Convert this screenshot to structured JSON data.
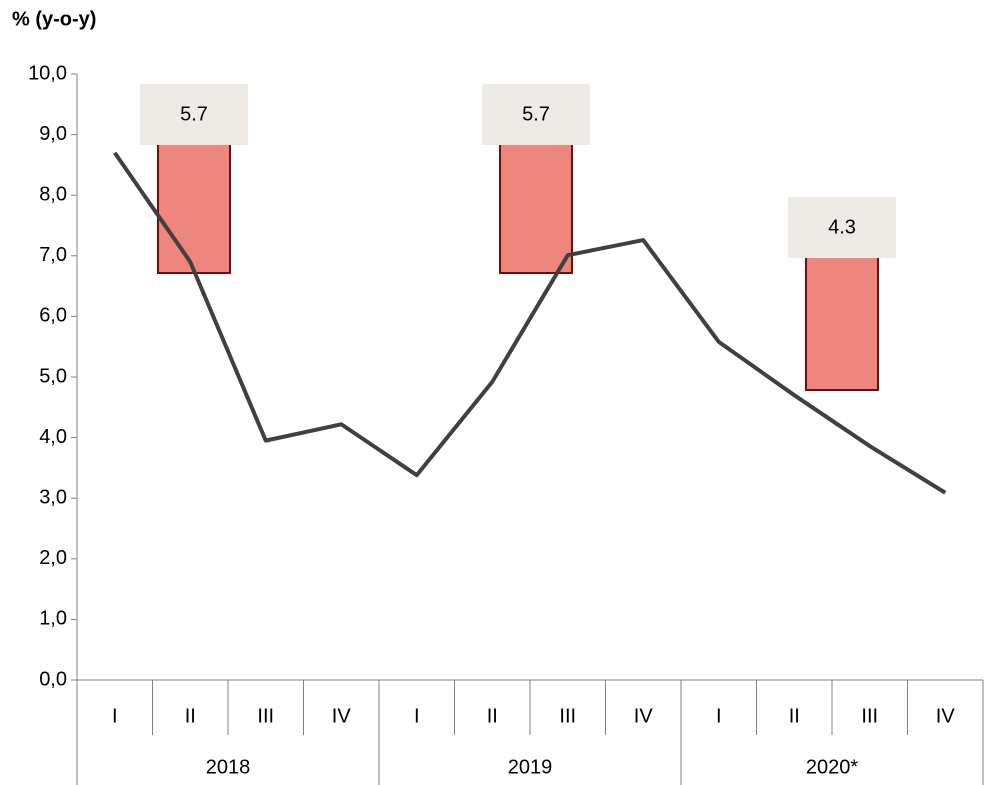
{
  "chart_data": {
    "type": "line",
    "y_axis_label": "% (y-o-y)",
    "categories": [
      "I",
      "II",
      "III",
      "IV",
      "I",
      "II",
      "III",
      "IV",
      "I",
      "II",
      "III",
      "IV"
    ],
    "groups": [
      "2018",
      "2019",
      "2020*"
    ],
    "series": [
      {
        "color": "#404040",
        "values": [
          8.7,
          6.9,
          3.95,
          4.22,
          3.38,
          4.92,
          7.01,
          7.26,
          5.58,
          4.7,
          3.86,
          3.09
        ]
      }
    ],
    "annotations": [
      "5.7",
      "5.7",
      "4.3"
    ],
    "ylim": [
      0,
      10
    ],
    "yticks": [
      {
        "value": 0,
        "label": "0,0"
      },
      {
        "value": 1,
        "label": "1,0"
      },
      {
        "value": 2,
        "label": "2,0"
      },
      {
        "value": 3,
        "label": "3,0"
      },
      {
        "value": 4,
        "label": "4,0"
      },
      {
        "value": 5,
        "label": "5,0"
      },
      {
        "value": 6,
        "label": "6,0"
      },
      {
        "value": 7,
        "label": "7,0"
      },
      {
        "value": 8,
        "label": "8,0"
      },
      {
        "value": 9,
        "label": "9,0"
      },
      {
        "value": 10,
        "label": "10,0"
      }
    ]
  }
}
